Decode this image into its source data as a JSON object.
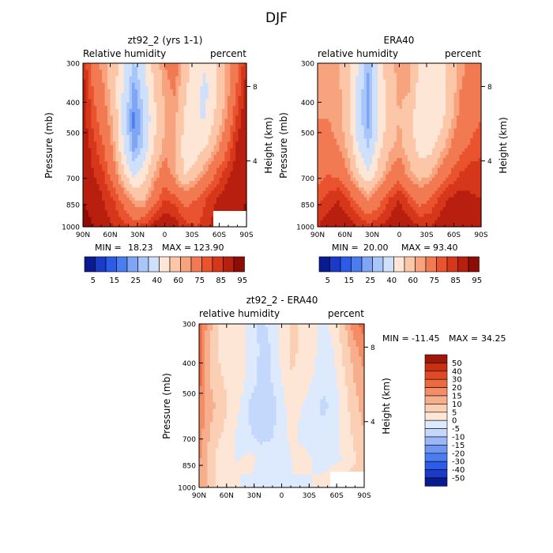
{
  "figure": {
    "title": "DJF"
  },
  "colors": {
    "abs_scale": [
      "#0a1a8f",
      "#1a3ac9",
      "#2c5be8",
      "#4a7ef0",
      "#7ea6f5",
      "#a9c6fa",
      "#cfe0fb",
      "#fde6d6",
      "#fbc7a8",
      "#f7a47e",
      "#f27a52",
      "#e9532e",
      "#d6361a",
      "#b81f0e",
      "#8c0d06"
    ],
    "diff_scale": [
      "#0a1a8f",
      "#1a3ac9",
      "#2c5be8",
      "#4a7ef0",
      "#6f96f3",
      "#9ab8f7",
      "#c4d8fb",
      "#dde9fc",
      "#fde6d6",
      "#fbcfb4",
      "#f7ae8c",
      "#f48d66",
      "#ec6a40",
      "#df4a24",
      "#c93012",
      "#a0160a"
    ]
  },
  "chart_data": [
    {
      "type": "heatmap",
      "panel_title": "zt92_2 (yrs 1-1)",
      "left_label": "Relative humidity",
      "right_label": "percent",
      "ylabel": "Pressure (mb)",
      "y2label": "Height (km)",
      "x_ticks": [
        "90N",
        "60N",
        "30N",
        "0",
        "30S",
        "60S",
        "90S"
      ],
      "y_ticks": [
        "300",
        "400",
        "500",
        "700",
        "850",
        "1000"
      ],
      "y2_ticks": [
        "8",
        "4"
      ],
      "stats": {
        "min_label": "MIN =",
        "min": "18.23",
        "max_label": "MAX =",
        "max": "123.90"
      },
      "field": [
        [
          85,
          70,
          62,
          55,
          42,
          28,
          40,
          55,
          65,
          70,
          55,
          45,
          40,
          50,
          60,
          72,
          85
        ],
        [
          88,
          75,
          66,
          55,
          38,
          22,
          35,
          50,
          62,
          66,
          52,
          42,
          38,
          48,
          60,
          75,
          88
        ],
        [
          88,
          78,
          70,
          58,
          35,
          18,
          30,
          48,
          60,
          62,
          48,
          40,
          40,
          52,
          65,
          80,
          90
        ],
        [
          90,
          82,
          75,
          62,
          38,
          20,
          32,
          50,
          62,
          60,
          45,
          42,
          48,
          60,
          72,
          85,
          92
        ],
        [
          92,
          85,
          80,
          70,
          50,
          35,
          45,
          60,
          70,
          60,
          48,
          55,
          65,
          75,
          82,
          88,
          92
        ],
        [
          95,
          90,
          85,
          80,
          72,
          60,
          60,
          72,
          80,
          78,
          72,
          75,
          80,
          85,
          88,
          92,
          95
        ],
        [
          100,
          95,
          88,
          85,
          82,
          80,
          82,
          88,
          90,
          88,
          82,
          80,
          82,
          88,
          92,
          96,
          98
        ]
      ]
    },
    {
      "type": "heatmap",
      "panel_title": "ERA40",
      "left_label": "relative humidity",
      "right_label": "percent",
      "ylabel": "Pressure (mb)",
      "y2label": "Height (km)",
      "x_ticks": [
        "90N",
        "60N",
        "30N",
        "0",
        "30S",
        "60S",
        "90S"
      ],
      "y_ticks": [
        "300",
        "400",
        "500",
        "700",
        "850",
        "1000"
      ],
      "y2_ticks": [
        "8",
        "4"
      ],
      "stats": {
        "min_label": "MIN =",
        "min": "20.00",
        "max_label": "MAX =",
        "max": "93.40"
      },
      "field": [
        [
          62,
          62,
          60,
          55,
          40,
          25,
          45,
          58,
          62,
          62,
          50,
          45,
          45,
          55,
          62,
          68,
          72
        ],
        [
          65,
          64,
          62,
          55,
          35,
          22,
          42,
          55,
          62,
          60,
          45,
          40,
          42,
          55,
          65,
          70,
          75
        ],
        [
          65,
          65,
          62,
          55,
          33,
          22,
          40,
          55,
          60,
          55,
          42,
          40,
          45,
          58,
          68,
          72,
          75
        ],
        [
          68,
          68,
          65,
          58,
          38,
          28,
          45,
          58,
          62,
          55,
          45,
          45,
          55,
          65,
          72,
          76,
          78
        ],
        [
          72,
          75,
          72,
          65,
          50,
          40,
          55,
          65,
          70,
          62,
          55,
          58,
          68,
          75,
          80,
          82,
          82
        ],
        [
          78,
          82,
          85,
          80,
          72,
          65,
          72,
          80,
          85,
          78,
          72,
          75,
          82,
          86,
          88,
          86,
          85
        ],
        [
          85,
          88,
          90,
          88,
          85,
          82,
          85,
          88,
          92,
          88,
          85,
          85,
          88,
          90,
          92,
          90,
          88
        ]
      ]
    },
    {
      "type": "heatmap",
      "panel_title": "zt92_2 - ERA40",
      "left_label": "relative humidity",
      "right_label": "percent",
      "ylabel": "Pressure (mb)",
      "y2label": "Height (km)",
      "x_ticks": [
        "90N",
        "60N",
        "30N",
        "0",
        "30S",
        "60S",
        "90S"
      ],
      "y_ticks": [
        "300",
        "400",
        "500",
        "700",
        "850",
        "1000"
      ],
      "y2_ticks": [
        "8",
        "4"
      ],
      "stats": {
        "min_label": "MIN =",
        "min": "-11.45",
        "max_label": "MAX =",
        "max": "34.25"
      },
      "field": [
        [
          22,
          12,
          4,
          3,
          2,
          -3,
          -6,
          -4,
          2,
          6,
          4,
          2,
          -2,
          2,
          8,
          18,
          22
        ],
        [
          22,
          10,
          4,
          2,
          2,
          -2,
          -6,
          -5,
          2,
          6,
          4,
          2,
          -3,
          0,
          6,
          12,
          18
        ],
        [
          22,
          10,
          6,
          3,
          2,
          -3,
          -6,
          -5,
          0,
          5,
          3,
          0,
          -4,
          -2,
          4,
          10,
          14
        ],
        [
          20,
          12,
          8,
          4,
          0,
          -6,
          -8,
          -8,
          -2,
          3,
          0,
          -3,
          -6,
          -4,
          2,
          8,
          12
        ],
        [
          18,
          10,
          6,
          2,
          -2,
          -5,
          -7,
          -6,
          -2,
          2,
          -2,
          -3,
          -4,
          -2,
          2,
          6,
          10
        ],
        [
          16,
          8,
          2,
          0,
          0,
          2,
          -2,
          -2,
          -4,
          0,
          2,
          0,
          -2,
          -1,
          0,
          4,
          8
        ],
        [
          14,
          8,
          4,
          2,
          0,
          -2,
          -3,
          -2,
          -2,
          0,
          -2,
          0,
          2,
          4,
          8,
          10,
          12
        ]
      ],
      "legend_levels": [
        "50",
        "40",
        "30",
        "20",
        "15",
        "10",
        "5",
        "0",
        "-5",
        "-10",
        "-15",
        "-20",
        "-30",
        "-40",
        "-50"
      ]
    }
  ],
  "colorbars": [
    {
      "levels": [
        "5",
        "15",
        "25",
        "40",
        "60",
        "75",
        "85",
        "95"
      ]
    },
    {
      "levels": [
        "5",
        "15",
        "25",
        "40",
        "60",
        "75",
        "85",
        "95"
      ]
    }
  ]
}
